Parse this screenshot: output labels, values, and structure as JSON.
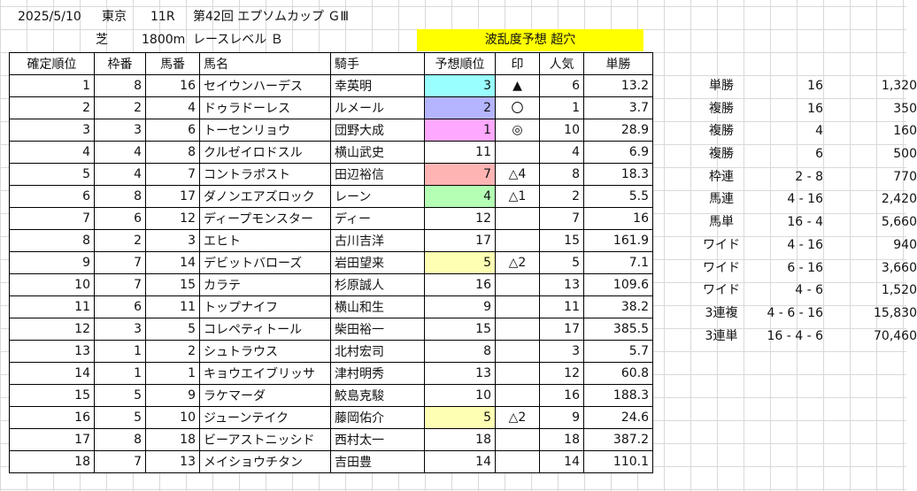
{
  "header": {
    "date": "2025/5/10",
    "venue": "東京",
    "race_no": "11R",
    "race_name": "第42回 エプソムカップ ＧⅢ",
    "surface": "芝",
    "distance": "1800m",
    "race_level": "レースレベル Ｂ",
    "forecast": "波乱度予想 超穴"
  },
  "columns": [
    "確定順位",
    "枠番",
    "馬番",
    "馬名",
    "騎手",
    "予想順位",
    "印",
    "人気",
    "単勝"
  ],
  "rows": [
    {
      "rank": "1",
      "waku": "8",
      "umaban": "16",
      "horse": "セイウンハーデス",
      "jockey": "幸英明",
      "pred": "3",
      "mark": "▲",
      "pop": "6",
      "odds": "13.2",
      "color": "#99ffff"
    },
    {
      "rank": "2",
      "waku": "2",
      "umaban": "4",
      "horse": "ドゥラドーレス",
      "jockey": "ルメール",
      "pred": "2",
      "mark": "〇",
      "pop": "1",
      "odds": "3.7",
      "color": "#b4b4ff"
    },
    {
      "rank": "3",
      "waku": "3",
      "umaban": "6",
      "horse": "トーセンリョウ",
      "jockey": "団野大成",
      "pred": "1",
      "mark": "◎",
      "pop": "10",
      "odds": "28.9",
      "color": "#ffa8ff"
    },
    {
      "rank": "4",
      "waku": "4",
      "umaban": "8",
      "horse": "クルゼイロドスル",
      "jockey": "横山武史",
      "pred": "11",
      "mark": "",
      "pop": "4",
      "odds": "6.9",
      "color": ""
    },
    {
      "rank": "5",
      "waku": "4",
      "umaban": "7",
      "horse": "コントラポスト",
      "jockey": "田辺裕信",
      "pred": "7",
      "mark": "△4",
      "pop": "8",
      "odds": "18.3",
      "color": "#ffb4b4"
    },
    {
      "rank": "6",
      "waku": "8",
      "umaban": "17",
      "horse": "ダノンエアズロック",
      "jockey": "レーン",
      "pred": "4",
      "mark": "△1",
      "pop": "2",
      "odds": "5.5",
      "color": "#b4ffb4"
    },
    {
      "rank": "7",
      "waku": "6",
      "umaban": "12",
      "horse": "ディープモンスター",
      "jockey": "ディー",
      "pred": "12",
      "mark": "",
      "pop": "7",
      "odds": "16",
      "color": ""
    },
    {
      "rank": "8",
      "waku": "2",
      "umaban": "3",
      "horse": "エヒト",
      "jockey": "古川吉洋",
      "pred": "17",
      "mark": "",
      "pop": "15",
      "odds": "161.9",
      "color": ""
    },
    {
      "rank": "9",
      "waku": "7",
      "umaban": "14",
      "horse": "デビットバローズ",
      "jockey": "岩田望来",
      "pred": "5",
      "mark": "△2",
      "pop": "5",
      "odds": "7.1",
      "color": "#ffffb4"
    },
    {
      "rank": "10",
      "waku": "7",
      "umaban": "15",
      "horse": "カラテ",
      "jockey": "杉原誠人",
      "pred": "16",
      "mark": "",
      "pop": "13",
      "odds": "109.6",
      "color": ""
    },
    {
      "rank": "11",
      "waku": "6",
      "umaban": "11",
      "horse": "トップナイフ",
      "jockey": "横山和生",
      "pred": "9",
      "mark": "",
      "pop": "11",
      "odds": "38.2",
      "color": ""
    },
    {
      "rank": "12",
      "waku": "3",
      "umaban": "5",
      "horse": "コレペティトール",
      "jockey": "柴田裕一",
      "pred": "15",
      "mark": "",
      "pop": "17",
      "odds": "385.5",
      "color": ""
    },
    {
      "rank": "13",
      "waku": "1",
      "umaban": "2",
      "horse": "シュトラウス",
      "jockey": "北村宏司",
      "pred": "8",
      "mark": "",
      "pop": "3",
      "odds": "5.7",
      "color": ""
    },
    {
      "rank": "14",
      "waku": "1",
      "umaban": "1",
      "horse": "キョウエイブリッサ",
      "jockey": "津村明秀",
      "pred": "13",
      "mark": "",
      "pop": "12",
      "odds": "60.8",
      "color": ""
    },
    {
      "rank": "15",
      "waku": "5",
      "umaban": "9",
      "horse": "ラケマーダ",
      "jockey": "鮫島克駿",
      "pred": "10",
      "mark": "",
      "pop": "16",
      "odds": "188.3",
      "color": ""
    },
    {
      "rank": "16",
      "waku": "5",
      "umaban": "10",
      "horse": "ジューンテイク",
      "jockey": "藤岡佑介",
      "pred": "5",
      "mark": "△2",
      "pop": "9",
      "odds": "24.6",
      "color": "#ffffb4"
    },
    {
      "rank": "17",
      "waku": "8",
      "umaban": "18",
      "horse": "ビーアストニッシド",
      "jockey": "西村太一",
      "pred": "18",
      "mark": "",
      "pop": "18",
      "odds": "387.2",
      "color": ""
    },
    {
      "rank": "18",
      "waku": "7",
      "umaban": "13",
      "horse": "メイショウチタン",
      "jockey": "吉田豊",
      "pred": "14",
      "mark": "",
      "pop": "14",
      "odds": "110.1",
      "color": ""
    }
  ],
  "payouts": [
    {
      "type": "単勝",
      "combo": "16",
      "amount": "1,320"
    },
    {
      "type": "複勝",
      "combo": "16",
      "amount": "350"
    },
    {
      "type": "複勝",
      "combo": "4",
      "amount": "160"
    },
    {
      "type": "複勝",
      "combo": "6",
      "amount": "500"
    },
    {
      "type": "枠連",
      "combo": "2 - 8",
      "amount": "770"
    },
    {
      "type": "馬連",
      "combo": "4 - 16",
      "amount": "2,420"
    },
    {
      "type": "馬単",
      "combo": "16 - 4",
      "amount": "5,660"
    },
    {
      "type": "ワイド",
      "combo": "4 - 16",
      "amount": "940"
    },
    {
      "type": "ワイド",
      "combo": "6 - 16",
      "amount": "3,660"
    },
    {
      "type": "ワイド",
      "combo": "4 - 6",
      "amount": "1,520"
    },
    {
      "type": "3連複",
      "combo": "4 - 6 - 16",
      "amount": "15,830"
    },
    {
      "type": "3連単",
      "combo": "16 - 4 - 6",
      "amount": "70,460"
    }
  ]
}
